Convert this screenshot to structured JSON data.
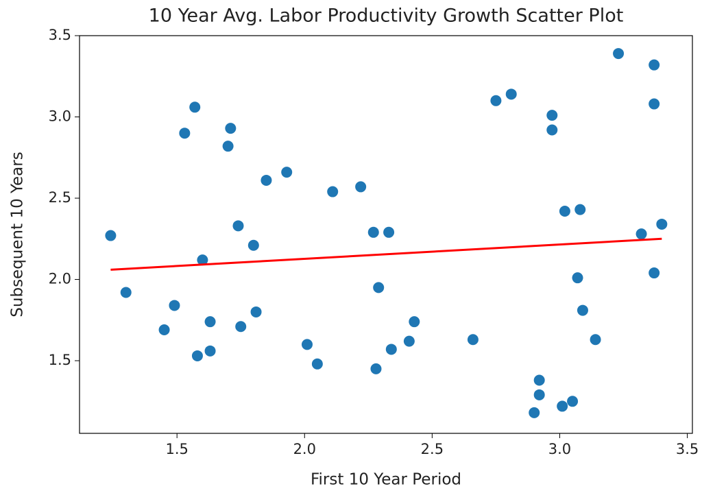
{
  "chart_data": {
    "type": "scatter",
    "title": "10 Year Avg. Labor Productivity Growth Scatter Plot",
    "x_label": "First 10 Year Period",
    "y_label": "Subsequent 10 Years",
    "xlim": [
      1.118,
      3.52
    ],
    "ylim": [
      1.053,
      3.5
    ],
    "xticks": [
      1.5,
      {
        "value": 2,
        "label": "2.0"
      },
      2.5,
      {
        "value": 3,
        "label": "3.0"
      },
      3.5
    ],
    "yticks": [
      1.5,
      {
        "value": 2,
        "label": "2.0"
      },
      2.5,
      {
        "value": 3,
        "label": "3.0"
      },
      3.5
    ],
    "series": [
      {
        "type": "scatter",
        "color": "#1f77b4",
        "x": [
          1.24,
          1.3,
          1.45,
          1.49,
          1.53,
          1.57,
          1.58,
          1.6,
          1.63,
          1.63,
          1.7,
          1.71,
          1.74,
          1.75,
          1.8,
          1.81,
          1.85,
          1.93,
          2.01,
          2.05,
          2.11,
          2.22,
          2.27,
          2.28,
          2.29,
          2.33,
          2.34,
          2.41,
          2.43,
          2.66,
          2.75,
          2.81,
          2.9,
          2.92,
          2.92,
          2.97,
          2.97,
          3.01,
          3.02,
          3.05,
          3.07,
          3.08,
          3.09,
          3.14,
          3.23,
          3.32,
          3.37,
          3.37,
          3.37,
          3.4
        ],
        "values": [
          2.27,
          1.92,
          1.69,
          1.84,
          2.9,
          3.06,
          1.53,
          2.12,
          1.56,
          1.74,
          2.82,
          2.93,
          2.33,
          1.71,
          2.21,
          1.8,
          2.61,
          2.66,
          1.6,
          1.48,
          2.54,
          2.57,
          2.29,
          1.45,
          1.95,
          2.29,
          1.57,
          1.62,
          1.74,
          1.63,
          3.1,
          3.14,
          1.18,
          1.38,
          1.29,
          3.01,
          2.92,
          1.22,
          2.42,
          1.25,
          2.01,
          2.43,
          1.81,
          1.63,
          3.39,
          2.28,
          3.08,
          3.32,
          2.04,
          2.34
        ]
      },
      {
        "type": "line",
        "color": "#ff0000",
        "x": [
          1.24,
          3.4
        ],
        "values": [
          2.06,
          2.25
        ]
      }
    ]
  }
}
